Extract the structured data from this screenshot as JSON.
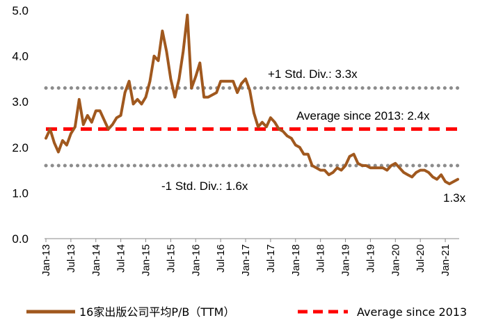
{
  "chart_data": {
    "type": "line",
    "title": "",
    "xlabel": "",
    "ylabel": "",
    "ylim": [
      0,
      5
    ],
    "yticks": [
      "0.0",
      "1.0",
      "2.0",
      "3.0",
      "4.0",
      "5.0"
    ],
    "x_tick_labels": [
      "Jan-13",
      "Jul-13",
      "Jan-14",
      "Jul-14",
      "Jan-15",
      "Jul-15",
      "Jan-16",
      "Jul-16",
      "Jan-17",
      "Jul-17",
      "Jan-18",
      "Jul-18",
      "Jan-19",
      "Jul-19",
      "Jan-20",
      "Jul-20",
      "Jan-21"
    ],
    "series": [
      {
        "name": "16家出版公司平均P/B（TTM）",
        "color": "#A0581E",
        "start": "Jan-13",
        "frequency": "monthly",
        "values": [
          2.2,
          2.4,
          2.1,
          1.9,
          2.15,
          2.05,
          2.3,
          2.45,
          3.05,
          2.5,
          2.7,
          2.55,
          2.8,
          2.8,
          2.6,
          2.4,
          2.5,
          2.65,
          2.7,
          3.2,
          3.45,
          2.95,
          3.05,
          2.95,
          3.1,
          3.45,
          4.0,
          3.9,
          4.55,
          4.1,
          3.5,
          3.1,
          3.5,
          4.1,
          4.9,
          3.3,
          3.55,
          3.85,
          3.1,
          3.1,
          3.15,
          3.2,
          3.45,
          3.45,
          3.45,
          3.45,
          3.2,
          3.4,
          3.5,
          3.25,
          2.75,
          2.45,
          2.55,
          2.45,
          2.65,
          2.55,
          2.4,
          2.35,
          2.25,
          2.2,
          2.05,
          2.0,
          1.85,
          1.85,
          1.6,
          1.55,
          1.5,
          1.5,
          1.4,
          1.45,
          1.55,
          1.5,
          1.6,
          1.8,
          1.85,
          1.65,
          1.6,
          1.6,
          1.55,
          1.55,
          1.55,
          1.55,
          1.5,
          1.6,
          1.65,
          1.55,
          1.45,
          1.4,
          1.35,
          1.45,
          1.5,
          1.5,
          1.45,
          1.35,
          1.3,
          1.4,
          1.25,
          1.2,
          1.25,
          1.3
        ]
      },
      {
        "name": "Average since 2013",
        "color": "#FF0000",
        "constant": 2.4
      }
    ],
    "reference_lines": [
      {
        "label": "+1 Std. Div.: 3.3x",
        "value": 3.3,
        "color": "#8C8C8C"
      },
      {
        "label": "-1 Std. Div.: 1.6x",
        "value": 1.6,
        "color": "#8C8C8C"
      }
    ],
    "annotations": {
      "average": "Average since 2013: 2.4x",
      "last_value": "1.3x"
    },
    "legend": {
      "position": "bottom",
      "items": [
        "16家出版公司平均P/B（TTM）",
        "Average since 2013"
      ]
    },
    "grid": false
  }
}
